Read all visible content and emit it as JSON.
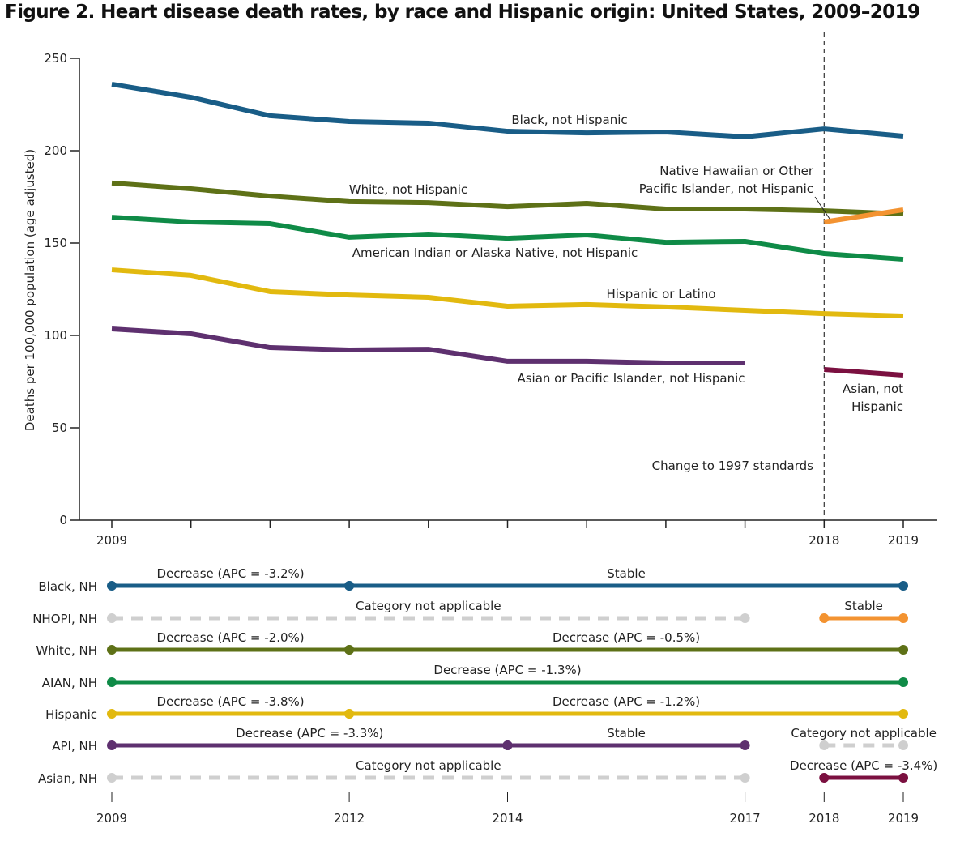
{
  "chart_data": [
    {
      "type": "line",
      "title": "Figure 2. Heart disease death rates, by race and Hispanic origin: United States, 2009–2019",
      "ylabel": "Deaths per 100,000 population (age adjusted)",
      "xlabel": "",
      "ylim": [
        0,
        250
      ],
      "yticks": [
        0,
        50,
        100,
        150,
        200,
        250
      ],
      "xlim": [
        2009,
        2019
      ],
      "xtick_labels": [
        "2009",
        "2018",
        "2019"
      ],
      "grid": false,
      "annotation": {
        "year": 2018,
        "label": "Change to 1997 standards"
      },
      "series": [
        {
          "name": "Black, not Hispanic",
          "color": "#195d87",
          "x": [
            2009,
            2010,
            2011,
            2012,
            2013,
            2014,
            2015,
            2016,
            2017,
            2018,
            2019
          ],
          "values": [
            236.0,
            228.9,
            218.9,
            215.8,
            214.9,
            210.5,
            209.6,
            210.1,
            207.5,
            211.8,
            207.9
          ]
        },
        {
          "name": "White, not Hispanic",
          "color": "#5e7117",
          "x": [
            2009,
            2010,
            2011,
            2012,
            2013,
            2014,
            2015,
            2016,
            2017,
            2018,
            2019
          ],
          "values": [
            182.5,
            179.4,
            175.4,
            172.4,
            171.9,
            169.7,
            171.5,
            168.4,
            168.4,
            167.5,
            165.8
          ]
        },
        {
          "name": "American Indian or Alaska Native, not Hispanic",
          "color": "#0f8b47",
          "x": [
            2009,
            2010,
            2011,
            2012,
            2013,
            2014,
            2015,
            2016,
            2017,
            2018,
            2019
          ],
          "values": [
            164.0,
            161.4,
            160.5,
            153.1,
            154.8,
            152.6,
            154.4,
            150.4,
            150.9,
            144.3,
            141.2
          ]
        },
        {
          "name": "Hispanic or Latino",
          "color": "#e2b90f",
          "x": [
            2009,
            2010,
            2011,
            2012,
            2013,
            2014,
            2015,
            2016,
            2017,
            2018,
            2019
          ],
          "values": [
            135.5,
            132.5,
            123.7,
            121.9,
            120.6,
            115.8,
            116.7,
            115.4,
            113.6,
            111.8,
            110.5
          ]
        },
        {
          "name": "Asian or Pacific Islander, not Hispanic",
          "color": "#5e306f",
          "x": [
            2009,
            2010,
            2011,
            2012,
            2013,
            2014,
            2015,
            2016,
            2017
          ],
          "values": [
            103.5,
            100.9,
            93.4,
            92.1,
            92.5,
            86.0,
            86.0,
            85.1,
            85.1
          ]
        },
        {
          "name": "Native Hawaiian or Other Pacific Islander, not Hispanic",
          "label_lines": [
            "Native Hawaiian or Other",
            "Pacific Islander, not Hispanic"
          ],
          "color": "#f39331",
          "x": [
            2018,
            2019
          ],
          "values": [
            161.4,
            168.0
          ]
        },
        {
          "name": "Asian, not Hispanic",
          "label_lines": [
            "Asian, not",
            "Hispanic"
          ],
          "color": "#7b1040",
          "x": [
            2018,
            2019
          ],
          "values": [
            81.6,
            78.5
          ]
        }
      ]
    },
    {
      "type": "segments",
      "xtick_labels": [
        "2009",
        "2012",
        "2014",
        "2017",
        "2018",
        "2019"
      ],
      "na_color": "#cfcfcf",
      "rows": [
        {
          "label": "Black, NH",
          "segments": [
            {
              "start": 2009,
              "end": 2012,
              "text": "Decrease (APC = -3.2%)",
              "color": "#195d87"
            },
            {
              "start": 2012,
              "end": 2019,
              "text": "Stable",
              "color": "#195d87"
            }
          ]
        },
        {
          "label": "NHOPI, NH",
          "segments": [
            {
              "start": 2009,
              "end": 2017,
              "text": "Category not applicable",
              "na": true
            },
            {
              "start": 2018,
              "end": 2019,
              "text": "Stable",
              "color": "#f39331"
            }
          ]
        },
        {
          "label": "White, NH",
          "segments": [
            {
              "start": 2009,
              "end": 2012,
              "text": "Decrease (APC = -2.0%)",
              "color": "#5e7117"
            },
            {
              "start": 2012,
              "end": 2019,
              "text": "Decrease (APC = -0.5%)",
              "color": "#5e7117"
            }
          ]
        },
        {
          "label": "AIAN, NH",
          "segments": [
            {
              "start": 2009,
              "end": 2019,
              "text": "Decrease (APC = -1.3%)",
              "color": "#0f8b47"
            }
          ]
        },
        {
          "label": "Hispanic",
          "segments": [
            {
              "start": 2009,
              "end": 2012,
              "text": "Decrease (APC = -3.8%)",
              "color": "#e2b90f"
            },
            {
              "start": 2012,
              "end": 2019,
              "text": "Decrease (APC = -1.2%)",
              "color": "#e2b90f"
            }
          ]
        },
        {
          "label": "API, NH",
          "segments": [
            {
              "start": 2009,
              "end": 2014,
              "text": "Decrease (APC = -3.3%)",
              "color": "#5e306f"
            },
            {
              "start": 2014,
              "end": 2017,
              "text": "Stable",
              "color": "#5e306f"
            },
            {
              "start": 2018,
              "end": 2019,
              "text": "Category not applicable",
              "na": true
            }
          ]
        },
        {
          "label": "Asian, NH",
          "segments": [
            {
              "start": 2009,
              "end": 2017,
              "text": "Category not applicable",
              "na": true
            },
            {
              "start": 2018,
              "end": 2019,
              "text": "Decrease (APC = -3.4%)",
              "color": "#7b1040"
            }
          ]
        }
      ]
    }
  ]
}
